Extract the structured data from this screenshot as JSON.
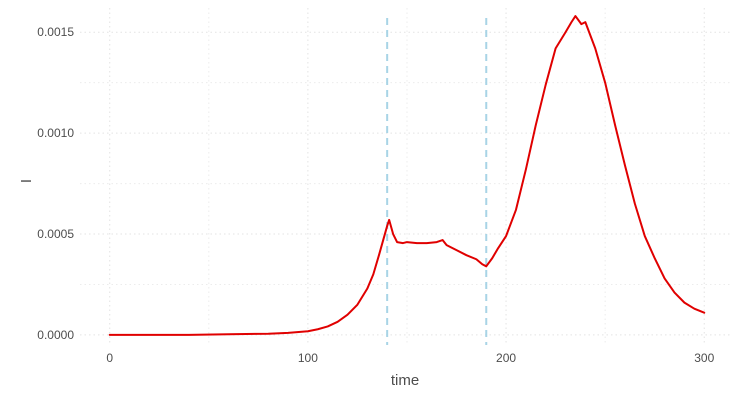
{
  "chart_data": {
    "type": "line",
    "title": "",
    "xlabel": "time",
    "ylabel": "I",
    "xlim": [
      -15,
      313
    ],
    "ylim": [
      -5e-05,
      0.00162
    ],
    "x_ticks": [
      0,
      100,
      200,
      300
    ],
    "x_tick_labels": [
      "0",
      "100",
      "200",
      "300"
    ],
    "y_ticks": [
      0,
      0.0005,
      0.001,
      0.0015
    ],
    "y_tick_labels": [
      "0.0000",
      "0.0005",
      "0.0010",
      "0.0015"
    ],
    "grid": true,
    "legend": "none",
    "vertical_lines": [
      140,
      190
    ],
    "colors": {
      "series": "#e00000",
      "vlines": "#a8d4e6",
      "grid": "#e3e3e3",
      "text": "#4d4d4d"
    },
    "series": [
      {
        "x": [
          0,
          20,
          40,
          60,
          80,
          90,
          100,
          105,
          110,
          115,
          120,
          125,
          130,
          133,
          136,
          138,
          140,
          141,
          143,
          145,
          148,
          150,
          155,
          160,
          165,
          168,
          170,
          175,
          180,
          185,
          188,
          190,
          193,
          196,
          200,
          205,
          210,
          215,
          220,
          225,
          230,
          233,
          235,
          238,
          240,
          245,
          250,
          255,
          260,
          265,
          270,
          275,
          280,
          285,
          290,
          295,
          300
        ],
        "y": [
          0.0,
          0.0,
          0.0,
          3e-06,
          6e-06,
          1e-05,
          1.8e-05,
          2.8e-05,
          4.2e-05,
          6.5e-05,
          0.0001,
          0.00015,
          0.00023,
          0.0003,
          0.0004,
          0.00047,
          0.00054,
          0.00057,
          0.0005,
          0.00046,
          0.000455,
          0.00046,
          0.000455,
          0.000455,
          0.00046,
          0.00047,
          0.000445,
          0.00042,
          0.000395,
          0.000375,
          0.00035,
          0.00034,
          0.00038,
          0.00043,
          0.00049,
          0.00062,
          0.00082,
          0.00104,
          0.00124,
          0.00142,
          0.0015,
          0.00155,
          0.00158,
          0.00154,
          0.00155,
          0.00142,
          0.00125,
          0.00104,
          0.00084,
          0.00065,
          0.00049,
          0.00038,
          0.00028,
          0.00021,
          0.00016,
          0.00013,
          0.00011
        ]
      }
    ]
  }
}
